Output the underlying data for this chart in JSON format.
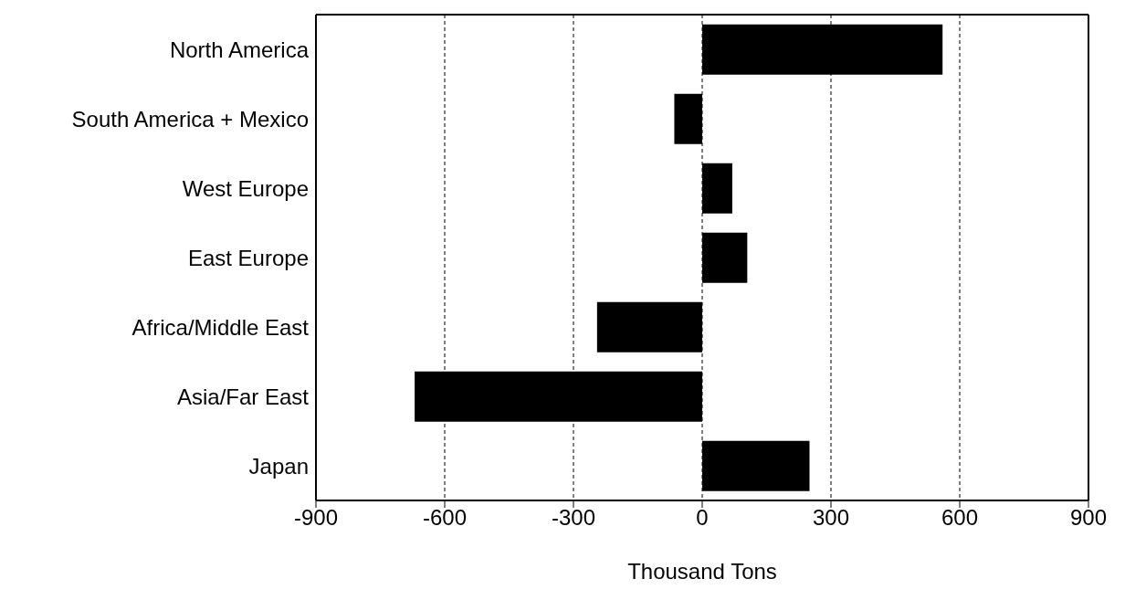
{
  "chart_data": {
    "type": "bar",
    "orientation": "horizontal",
    "xlabel": "Thousand Tons",
    "categories": [
      "North America",
      "South America + Mexico",
      "West Europe",
      "East Europe",
      "Africa/Middle East",
      "Asia/Far East",
      "Japan"
    ],
    "values": [
      560,
      -65,
      70,
      105,
      -245,
      -670,
      250
    ],
    "color": "#000000",
    "xlim": [
      -900,
      900
    ],
    "xticks": [
      -900,
      -600,
      -300,
      0,
      300,
      600,
      900
    ],
    "grid": "x"
  }
}
